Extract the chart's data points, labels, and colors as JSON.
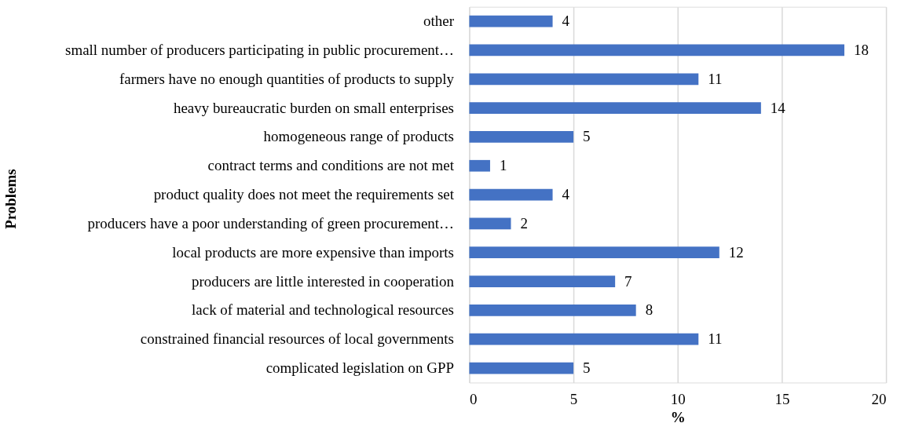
{
  "chart_data": {
    "type": "bar",
    "orientation": "horizontal",
    "xlabel": "%",
    "ylabel": "Problems",
    "categories": [
      "other",
      "small number of producers participating in public procurement…",
      "farmers have no enough quantities of products to supply",
      "heavy bureaucratic burden on small enterprises",
      "homogeneous range of products",
      "contract terms and conditions are not met",
      "product quality does not meet the requirements set",
      "producers have a poor understanding of green procurement…",
      "local products are more expensive than imports",
      "producers are little interested in cooperation",
      "lack of material and technological resources",
      "constrained financial resources of local governments",
      "complicated legislation on GPP"
    ],
    "values": [
      4,
      18,
      11,
      14,
      5,
      1,
      4,
      2,
      12,
      7,
      8,
      11,
      5
    ],
    "color": "#4472c4",
    "xlim": [
      0,
      20
    ],
    "xticks": [
      0,
      5,
      10,
      15,
      20
    ],
    "grid": "x",
    "data_labels": true
  }
}
